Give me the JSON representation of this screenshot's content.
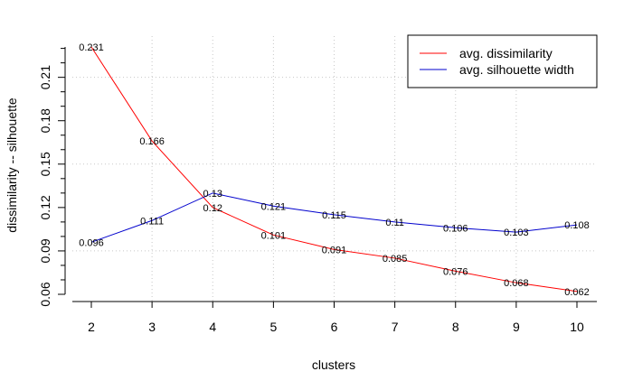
{
  "chart_data": {
    "type": "line",
    "xlabel": "clusters",
    "ylabel": "dissimilarity -- silhouette",
    "x": [
      2,
      3,
      4,
      5,
      6,
      7,
      8,
      9,
      10
    ],
    "xlim": [
      2,
      10
    ],
    "ylim": [
      0.06,
      0.231
    ],
    "x_ticks": [
      "2",
      "3",
      "4",
      "5",
      "6",
      "7",
      "8",
      "9",
      "10"
    ],
    "y_ticks": [
      0.06,
      0.09,
      0.12,
      0.15,
      0.18,
      0.21
    ],
    "y_tick_labels": [
      "0.06",
      "0.09",
      "0.12",
      "0.15",
      "0.18",
      "0.21"
    ],
    "y_grid": [
      0.09,
      0.15,
      0.21
    ],
    "grid": true,
    "legend_position": "top-right",
    "series": [
      {
        "name": "avg. dissimilarity",
        "color": "#ff0000",
        "values": [
          0.231,
          0.166,
          0.12,
          0.101,
          0.091,
          0.085,
          0.076,
          0.068,
          0.062
        ],
        "labels": [
          "0.231",
          "0.166",
          "0.12",
          "0.101",
          "0.091",
          "0.085",
          "0.076",
          "0.068",
          "0.062"
        ]
      },
      {
        "name": "avg. silhouette width",
        "color": "#0000cd",
        "values": [
          0.096,
          0.111,
          0.13,
          0.121,
          0.115,
          0.11,
          0.106,
          0.103,
          0.108
        ],
        "labels": [
          "0.096",
          "0.111",
          "0.13",
          "0.121",
          "0.115",
          "0.11",
          "0.106",
          "0.103",
          "0.108"
        ]
      }
    ]
  }
}
